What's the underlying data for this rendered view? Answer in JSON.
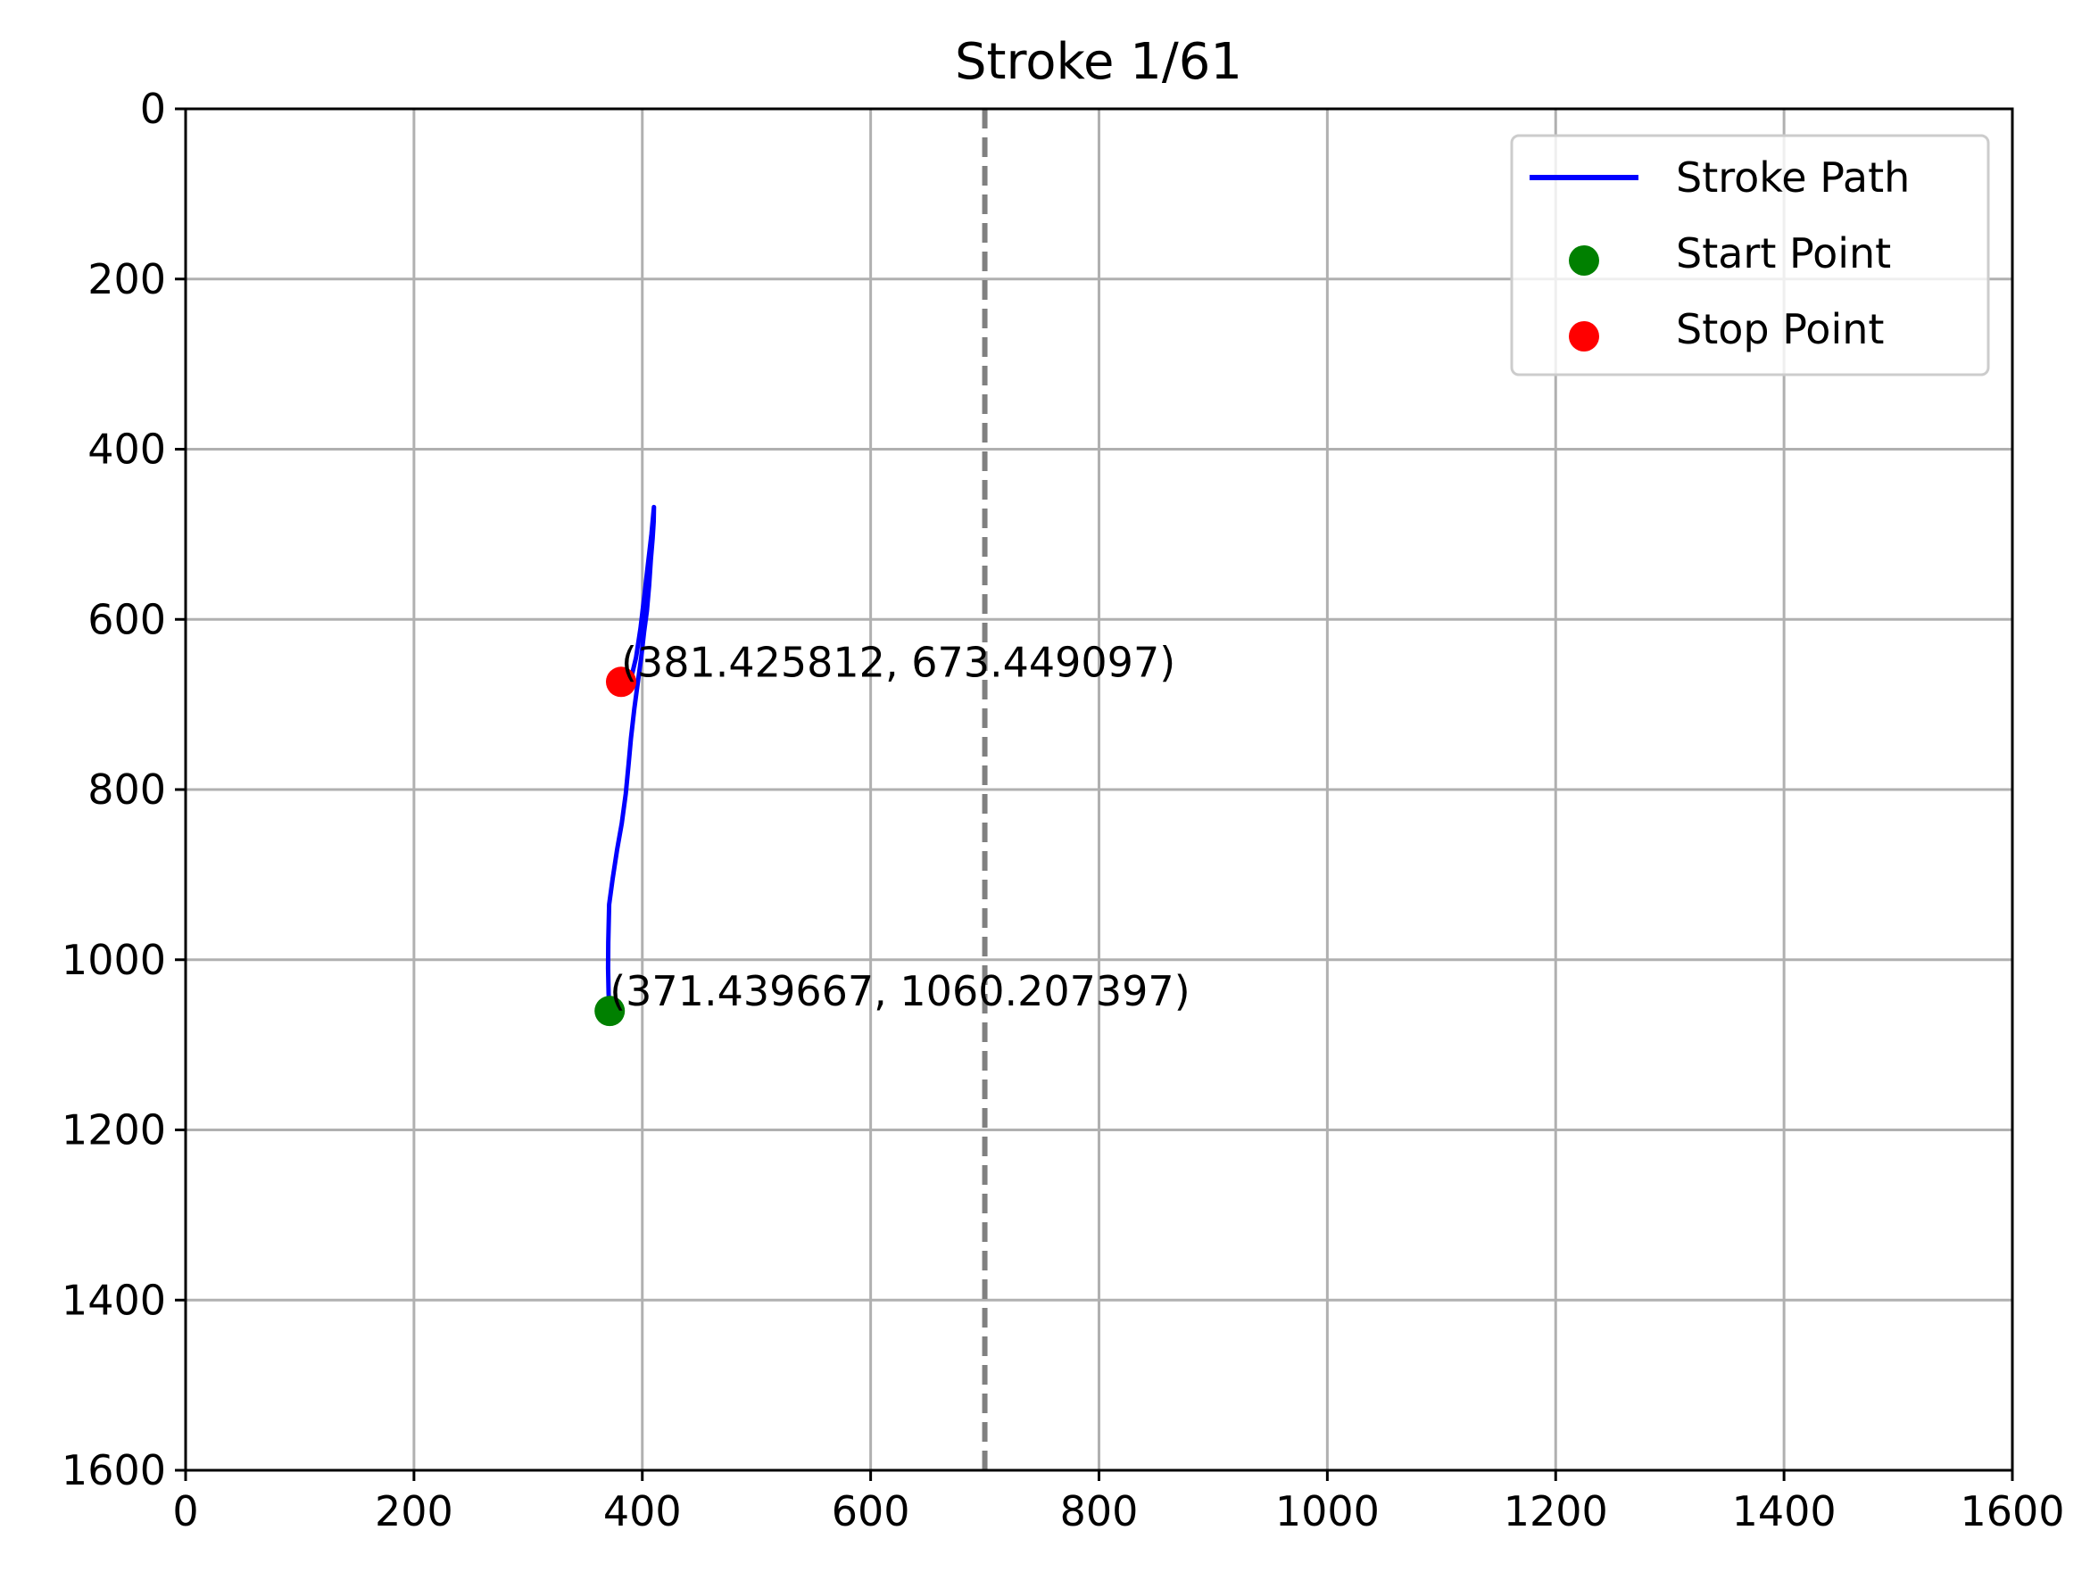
{
  "chart_data": {
    "type": "line",
    "title": "Stroke 1/61",
    "xlabel": "",
    "ylabel": "",
    "xlim": [
      0,
      1600
    ],
    "ylim": [
      1600,
      0
    ],
    "y_inverted": true,
    "grid": true,
    "x_ticks": [
      "0",
      "200",
      "400",
      "600",
      "800",
      "1000",
      "1200",
      "1400",
      "1600"
    ],
    "y_ticks": [
      "0",
      "200",
      "400",
      "600",
      "800",
      "1000",
      "1200",
      "1400",
      "1600"
    ],
    "reference_line": {
      "x": 700,
      "style": "dashed",
      "color": "#808080"
    },
    "series": [
      {
        "name": "Stroke Path",
        "color": "#0000ff",
        "points": [
          [
            371.4,
            1060.2
          ],
          [
            370.5,
            1040
          ],
          [
            370.0,
            1010
          ],
          [
            370.2,
            980
          ],
          [
            371.0,
            935
          ],
          [
            374.0,
            905
          ],
          [
            378.0,
            870
          ],
          [
            382.0,
            840
          ],
          [
            385.5,
            805
          ],
          [
            388.0,
            770
          ],
          [
            390.0,
            740
          ],
          [
            393.0,
            705
          ],
          [
            396.0,
            675
          ],
          [
            399.0,
            645
          ],
          [
            401.5,
            615
          ],
          [
            404.0,
            590
          ],
          [
            406.0,
            560
          ],
          [
            407.5,
            530
          ],
          [
            409.0,
            505
          ],
          [
            410.0,
            485
          ],
          [
            410.2,
            468
          ],
          [
            408.0,
            500
          ],
          [
            405.0,
            535
          ],
          [
            402.0,
            570
          ],
          [
            398.5,
            610
          ],
          [
            394.5,
            645
          ],
          [
            390.0,
            670
          ],
          [
            385.0,
            673.4
          ],
          [
            381.4,
            673.4
          ]
        ]
      }
    ],
    "markers": [
      {
        "name": "Start Point",
        "x": 371.439667,
        "y": 1060.207397,
        "color": "#008000",
        "label": "(371.439667, 1060.207397)"
      },
      {
        "name": "Stop Point",
        "x": 381.425812,
        "y": 673.449097,
        "color": "#ff0000",
        "label": "(381.425812, 673.449097)"
      }
    ],
    "legend": {
      "position": "top-right",
      "entries": [
        {
          "label": "Stroke Path",
          "kind": "line",
          "color": "#0000ff"
        },
        {
          "label": "Start Point",
          "kind": "dot",
          "color": "#008000"
        },
        {
          "label": "Stop Point",
          "kind": "dot",
          "color": "#ff0000"
        }
      ]
    }
  }
}
